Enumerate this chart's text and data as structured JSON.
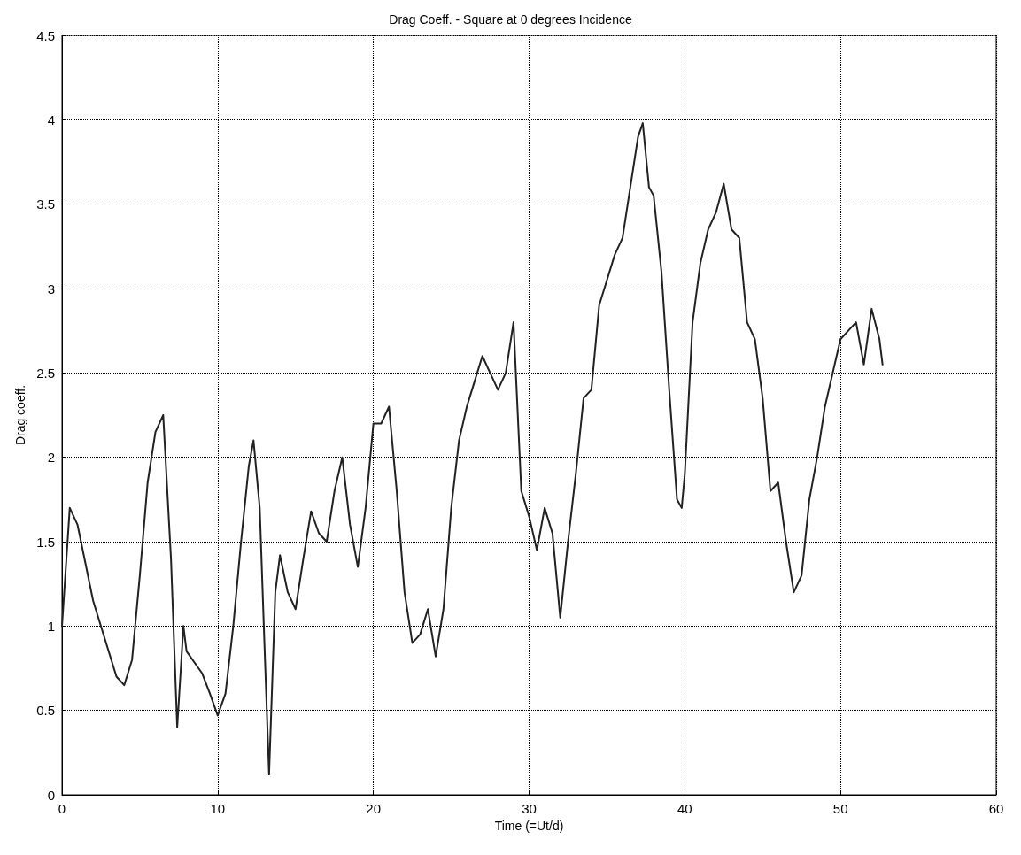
{
  "chart_data": {
    "type": "line",
    "title": "Drag Coeff. - Square at 0 degrees Incidence",
    "xlabel": "Time (=Ut/d)",
    "ylabel": "Drag coeff.",
    "xlim": [
      0,
      60
    ],
    "xticks": [
      0,
      10,
      20,
      30,
      40,
      50,
      60
    ],
    "ylim": [
      0,
      4.5
    ],
    "yticks": [
      0,
      0.5,
      1,
      1.5,
      2,
      2.5,
      3,
      3.5,
      4,
      4.5
    ],
    "grid": true,
    "marker": "none",
    "line_style": "solid",
    "series": [
      {
        "color": "#222222",
        "x": [
          0,
          0.5,
          1,
          2,
          3,
          3.5,
          4,
          4.5,
          5,
          5.5,
          6,
          6.5,
          7,
          7.4,
          7.8,
          8,
          9,
          9.5,
          10,
          10.5,
          11,
          11.5,
          12,
          12.3,
          12.7,
          13,
          13.3,
          13.7,
          14,
          14.5,
          15,
          15.5,
          16,
          16.5,
          17,
          17.5,
          18,
          18.5,
          19,
          19.5,
          20,
          20.5,
          21,
          21.5,
          22,
          22.5,
          23,
          23.5,
          24,
          24.5,
          25,
          25.5,
          26,
          26.5,
          27,
          27.5,
          28,
          28.5,
          29,
          29.5,
          30,
          30.5,
          31,
          31.5,
          32,
          32.5,
          33,
          33.5,
          34,
          34.5,
          35,
          35.5,
          36,
          36.5,
          37,
          37.3,
          37.7,
          38,
          38.5,
          39,
          39.5,
          39.8,
          40,
          40.5,
          41,
          41.5,
          42,
          42.5,
          43,
          43.5,
          44,
          44.5,
          45,
          45.5,
          46,
          46.5,
          47,
          47.5,
          48,
          48.5,
          49,
          49.5,
          50,
          50.5,
          51,
          51.5,
          52,
          52.5,
          52.7
        ],
        "values": [
          1.0,
          1.7,
          1.6,
          1.15,
          0.85,
          0.7,
          0.65,
          0.8,
          1.3,
          1.85,
          2.15,
          2.25,
          1.4,
          0.4,
          1.0,
          0.85,
          0.72,
          0.6,
          0.47,
          0.6,
          1.0,
          1.5,
          1.95,
          2.1,
          1.7,
          0.9,
          0.12,
          1.2,
          1.42,
          1.2,
          1.1,
          1.4,
          1.68,
          1.55,
          1.5,
          1.8,
          2.0,
          1.6,
          1.35,
          1.7,
          2.2,
          2.2,
          2.3,
          1.8,
          1.2,
          0.9,
          0.95,
          1.1,
          0.82,
          1.1,
          1.7,
          2.1,
          2.3,
          2.45,
          2.6,
          2.5,
          2.4,
          2.5,
          2.8,
          1.8,
          1.65,
          1.45,
          1.7,
          1.55,
          1.05,
          1.5,
          1.9,
          2.35,
          2.4,
          2.9,
          3.05,
          3.2,
          3.3,
          3.6,
          3.9,
          3.98,
          3.6,
          3.55,
          3.1,
          2.4,
          1.75,
          1.7,
          1.9,
          2.8,
          3.15,
          3.35,
          3.45,
          3.62,
          3.35,
          3.3,
          2.8,
          2.7,
          2.35,
          1.8,
          1.85,
          1.5,
          1.2,
          1.3,
          1.75,
          2.0,
          2.3,
          2.5,
          2.7,
          2.75,
          2.8,
          2.55,
          2.88,
          2.7,
          2.55
        ]
      }
    ]
  }
}
